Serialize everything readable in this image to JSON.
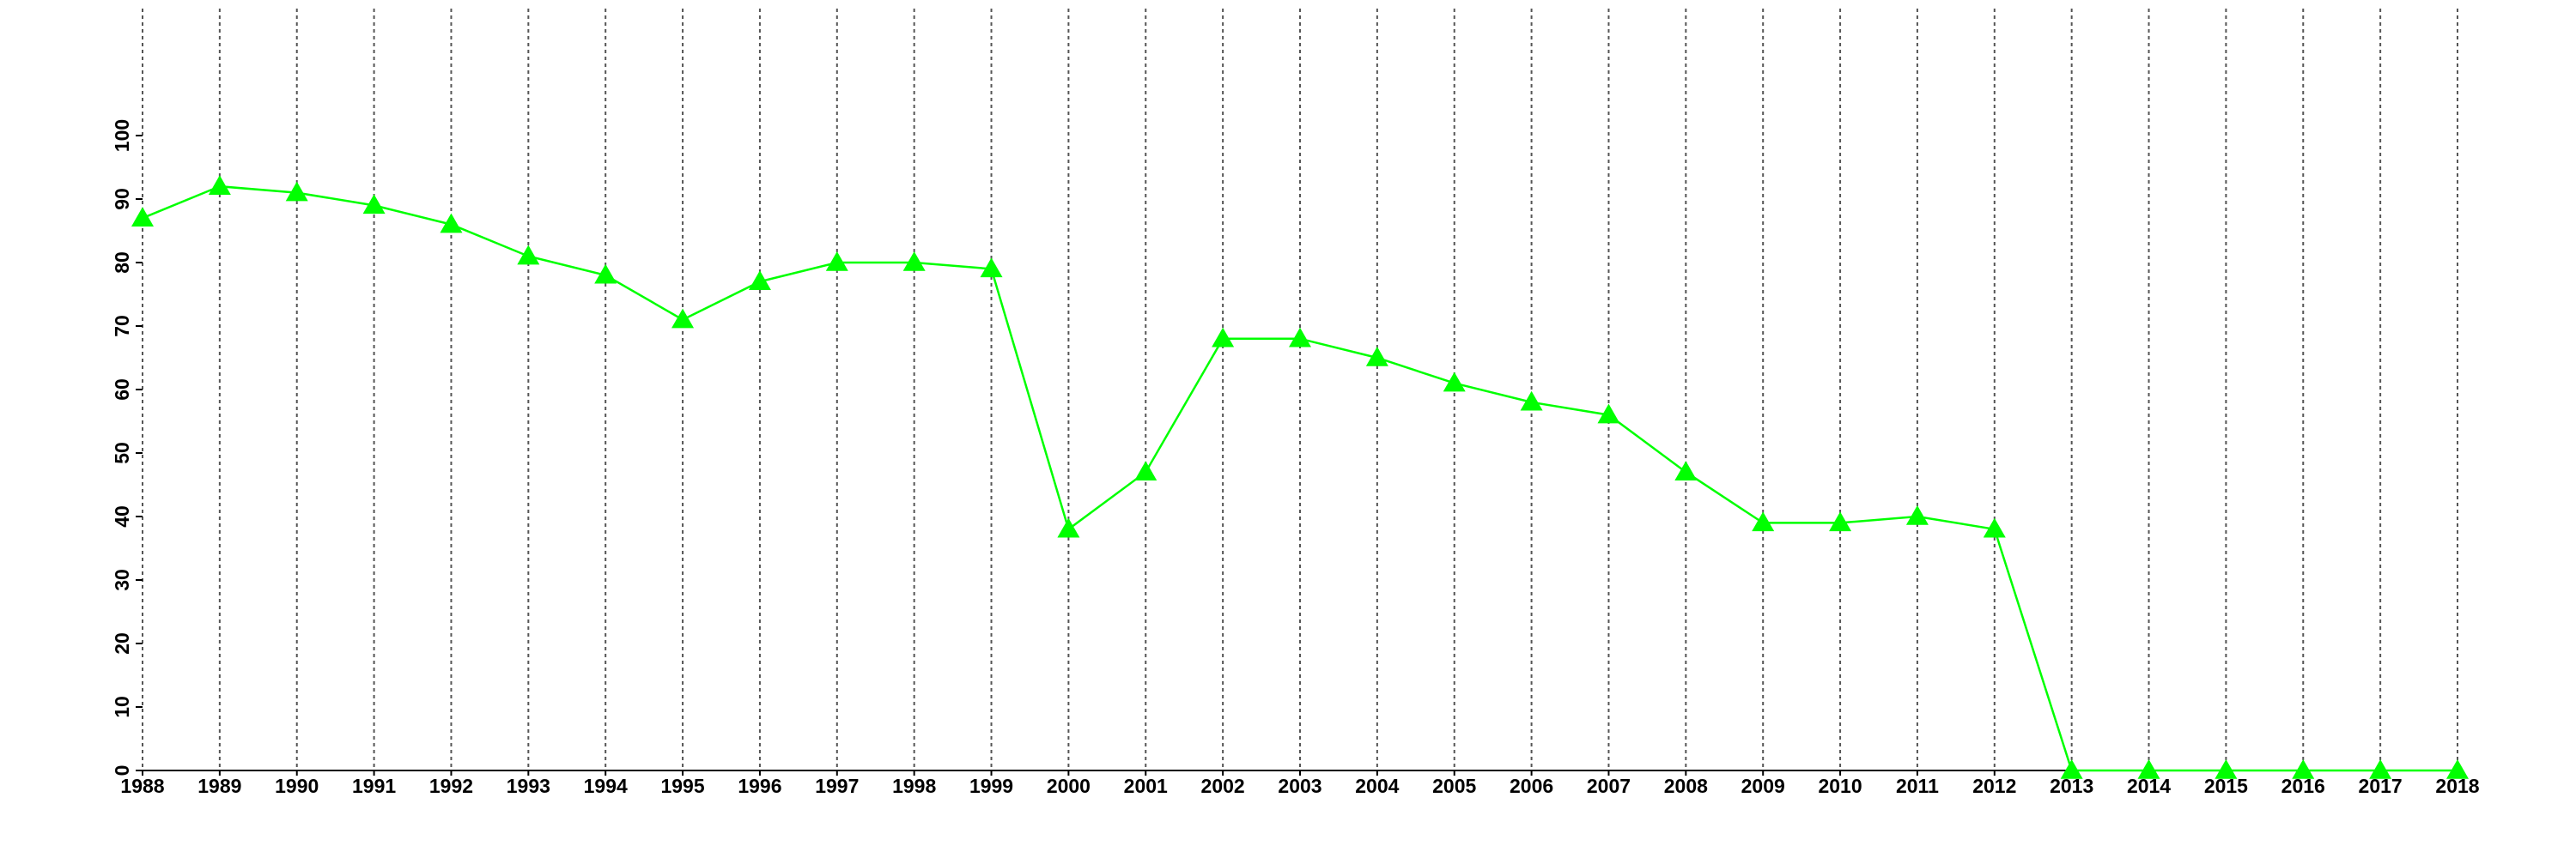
{
  "chart_data": {
    "type": "line",
    "x": [
      1988,
      1989,
      1990,
      1991,
      1992,
      1993,
      1994,
      1995,
      1996,
      1997,
      1998,
      1999,
      2000,
      2001,
      2002,
      2003,
      2004,
      2005,
      2006,
      2007,
      2008,
      2009,
      2010,
      2011,
      2012,
      2013,
      2014,
      2015,
      2016,
      2017,
      2018
    ],
    "series": [
      {
        "color": "#00ff00",
        "marker": "triangle",
        "values": [
          87,
          92,
          91,
          89,
          86,
          81,
          78,
          71,
          77,
          80,
          80,
          79,
          38,
          47,
          68,
          68,
          65,
          61,
          58,
          56,
          47,
          39,
          39,
          40,
          38,
          0,
          0,
          0,
          0,
          0,
          0
        ]
      }
    ],
    "xlim": [
      1988,
      2018
    ],
    "xticks": [
      1988,
      1989,
      1990,
      1991,
      1992,
      1993,
      1994,
      1995,
      1996,
      1997,
      1998,
      1999,
      2000,
      2001,
      2002,
      2003,
      2004,
      2005,
      2006,
      2007,
      2008,
      2009,
      2010,
      2011,
      2012,
      2013,
      2014,
      2015,
      2016,
      2017,
      2018
    ],
    "ylim": [
      0,
      120
    ],
    "yticks": [
      0,
      10,
      20,
      30,
      40,
      50,
      60,
      70,
      80,
      90,
      100
    ],
    "grid": "x"
  }
}
